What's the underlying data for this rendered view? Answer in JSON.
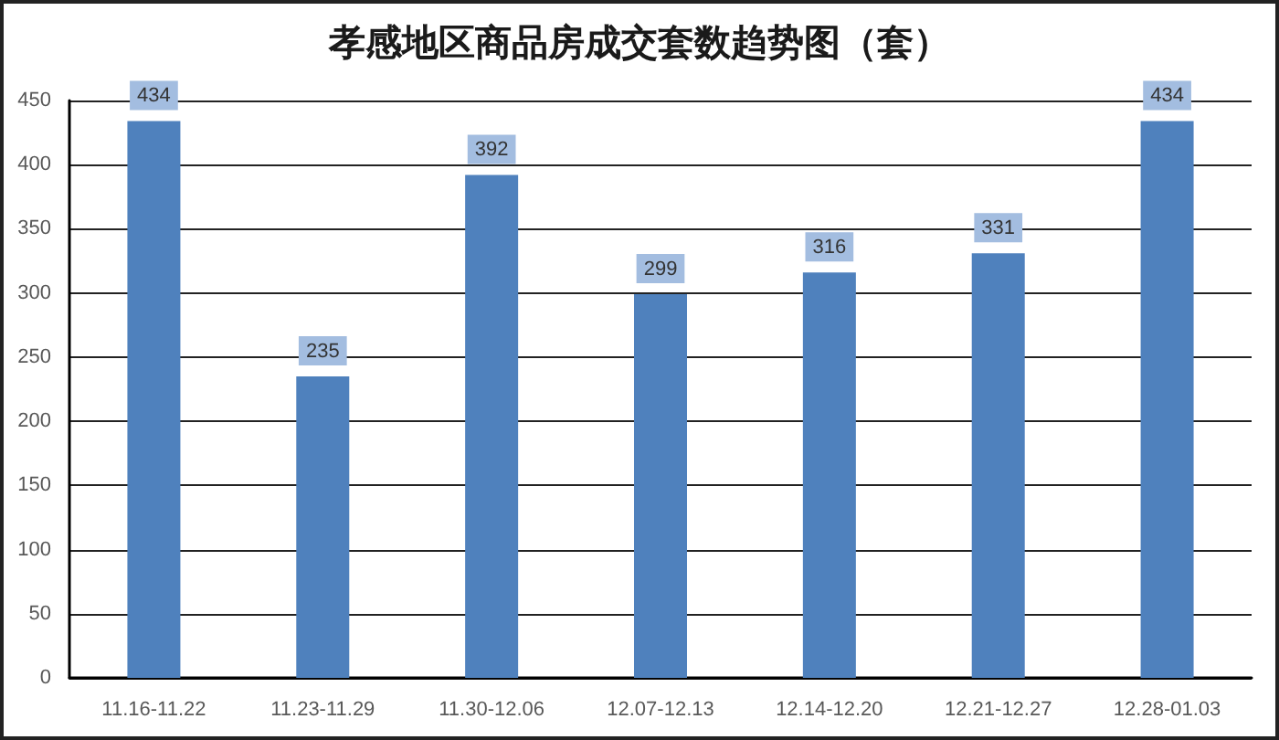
{
  "chart_data": {
    "type": "bar",
    "title": "孝感地区商品房成交套数趋势图（套）",
    "categories": [
      "11.16-11.22",
      "11.23-11.29",
      "11.30-12.06",
      "12.07-12.13",
      "12.14-12.20",
      "12.21-12.27",
      "12.28-01.03"
    ],
    "values": [
      434,
      235,
      392,
      299,
      316,
      331,
      434
    ],
    "color": "#4f81bd",
    "ylim": [
      0,
      450
    ],
    "yticks": [
      0,
      50,
      100,
      150,
      200,
      250,
      300,
      350,
      400,
      450
    ],
    "grid": "y",
    "data_labels": true
  }
}
